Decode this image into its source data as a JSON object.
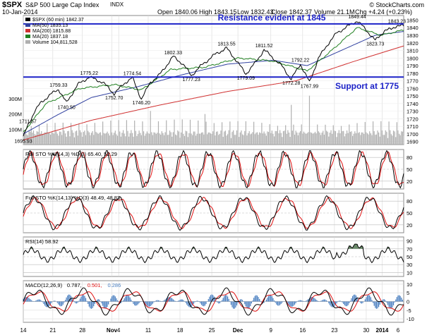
{
  "header": {
    "symbol": "$SPX",
    "name": "S&P 500 Large Cap Index",
    "exchange": "INDX",
    "date": "10-Jan-2014",
    "open": "Open 1840.06",
    "high": "High 1843.15",
    "low": "Low 1832.43",
    "close": "Close 1842.37",
    "volume": "Volume 21.1M",
    "change": "Chg +4.24 (+0.23%)",
    "copyright": "© StockCharts.com"
  },
  "colors": {
    "price": "#000000",
    "ma50": "#3040a0",
    "ma20": "#208020",
    "ma200": "#d03030",
    "volume": "#b0b0b0",
    "annotation": "#1c22c8",
    "signal": "#e01010",
    "histogram": "#4a7fc0",
    "rsi_fill": "#6a8a6a"
  },
  "chart_data": [
    {
      "type": "line",
      "panel": "price",
      "title": "$SPX (60 min) 1842.37",
      "legend": [
        "$SPX (60 min) 1842.37",
        "MA(50) 1835.13",
        "MA(200) 1815.88",
        "MA(20) 1837.18",
        "Volume 104,811,528"
      ],
      "x_labels": [
        "14",
        "21",
        "28",
        "Nov",
        "4",
        "11",
        "18",
        "25",
        "Dec",
        "9",
        "16",
        "23",
        "30",
        "2014",
        "6"
      ],
      "y_ticks": [
        1690,
        1700,
        1710,
        1720,
        1730,
        1740,
        1750,
        1760,
        1770,
        1780,
        1790,
        1800,
        1810,
        1820,
        1830,
        1840,
        1850
      ],
      "ylim": [
        1686,
        1856
      ],
      "annotations": [
        {
          "text": "Resistance evident at 1845",
          "level": 1845
        },
        {
          "text": "Support at 1775",
          "level": 1775
        }
      ],
      "swing_labels": [
        {
          "label": "1711.57",
          "i": 4
        },
        {
          "label": "1695.93",
          "i": 0
        },
        {
          "label": "1759.33",
          "i": 31
        },
        {
          "label": "1740.50",
          "i": 38
        },
        {
          "label": "1775.22",
          "i": 58
        },
        {
          "label": "1752.70",
          "i": 80
        },
        {
          "label": "1774.54",
          "i": 96
        },
        {
          "label": "1746.20",
          "i": 104
        },
        {
          "label": "1802.33",
          "i": 132
        },
        {
          "label": "1777.23",
          "i": 148
        },
        {
          "label": "1813.55",
          "i": 179
        },
        {
          "label": "1779.09",
          "i": 196
        },
        {
          "label": "1811.52",
          "i": 212
        },
        {
          "label": "1792.22",
          "i": 244
        },
        {
          "label": "1772.28",
          "i": 236
        },
        {
          "label": "1767.99",
          "i": 252
        },
        {
          "label": "1849.44",
          "i": 294
        },
        {
          "label": "1823.73",
          "i": 310
        },
        {
          "label": "1843.23",
          "i": 329
        }
      ],
      "volume_ticks": [
        "300M",
        "200M",
        "100M"
      ],
      "price_anchors": [
        [
          0,
          1696
        ],
        [
          4,
          1711
        ],
        [
          10,
          1730
        ],
        [
          16,
          1742
        ],
        [
          24,
          1752
        ],
        [
          31,
          1759
        ],
        [
          38,
          1741
        ],
        [
          48,
          1765
        ],
        [
          58,
          1775
        ],
        [
          70,
          1768
        ],
        [
          80,
          1753
        ],
        [
          90,
          1768
        ],
        [
          96,
          1774
        ],
        [
          104,
          1746
        ],
        [
          112,
          1768
        ],
        [
          120,
          1778
        ],
        [
          132,
          1802
        ],
        [
          140,
          1793
        ],
        [
          148,
          1777
        ],
        [
          158,
          1792
        ],
        [
          170,
          1806
        ],
        [
          179,
          1813
        ],
        [
          186,
          1800
        ],
        [
          196,
          1779
        ],
        [
          205,
          1795
        ],
        [
          212,
          1811
        ],
        [
          220,
          1800
        ],
        [
          228,
          1789
        ],
        [
          236,
          1772
        ],
        [
          244,
          1792
        ],
        [
          252,
          1768
        ],
        [
          260,
          1800
        ],
        [
          268,
          1818
        ],
        [
          276,
          1833
        ],
        [
          286,
          1842
        ],
        [
          294,
          1849
        ],
        [
          302,
          1837
        ],
        [
          310,
          1823
        ],
        [
          318,
          1836
        ],
        [
          324,
          1838
        ],
        [
          329,
          1843
        ],
        [
          335,
          1842
        ]
      ],
      "ma20_anchors": [
        [
          0,
          1702
        ],
        [
          20,
          1740
        ],
        [
          50,
          1760
        ],
        [
          80,
          1765
        ],
        [
          104,
          1758
        ],
        [
          130,
          1785
        ],
        [
          160,
          1788
        ],
        [
          190,
          1800
        ],
        [
          220,
          1796
        ],
        [
          250,
          1783
        ],
        [
          270,
          1808
        ],
        [
          294,
          1840
        ],
        [
          315,
          1830
        ],
        [
          335,
          1837
        ]
      ],
      "ma50_anchors": [
        [
          0,
          1700
        ],
        [
          30,
          1725
        ],
        [
          60,
          1748
        ],
        [
          100,
          1762
        ],
        [
          140,
          1778
        ],
        [
          180,
          1792
        ],
        [
          220,
          1797
        ],
        [
          250,
          1790
        ],
        [
          280,
          1810
        ],
        [
          310,
          1830
        ],
        [
          335,
          1835
        ]
      ],
      "ma200_anchors": [
        [
          0,
          1692
        ],
        [
          60,
          1718
        ],
        [
          120,
          1738
        ],
        [
          180,
          1756
        ],
        [
          240,
          1770
        ],
        [
          290,
          1795
        ],
        [
          335,
          1816
        ]
      ]
    },
    {
      "type": "line",
      "panel": "full-sto-14-3",
      "title": "Full STO %K(14,3) %D(3) 65.40, 52.29",
      "legend": [
        "Full STO %K(14,3) %D(3) 65.40, 52.29"
      ],
      "y_ticks": [
        20,
        50,
        80
      ],
      "ylim": [
        0,
        100
      ]
    },
    {
      "type": "line",
      "panel": "full-sto-14-13",
      "title": "Full STO %K(14,13) %D(3) 48.49, 48.83",
      "legend": [
        "Full STO %K(14,13) %D(3) 48.49, 48.83"
      ],
      "y_ticks": [
        20,
        50,
        80
      ],
      "ylim": [
        0,
        100
      ]
    },
    {
      "type": "line",
      "panel": "rsi",
      "title": "RSI(14) 58.92",
      "legend": [
        "RSI(14) 58.92"
      ],
      "y_ticks": [
        10,
        30,
        50,
        70,
        90
      ],
      "ylim": [
        0,
        100
      ]
    },
    {
      "type": "line",
      "panel": "macd",
      "title": "MACD(12,26,9) 0.787, 0.501, 0.286",
      "legend": [
        "MACD(12,26,9)",
        "0.787,",
        "0.501,",
        "0.286"
      ],
      "y_ticks": [
        -10,
        -5,
        0,
        5,
        10
      ],
      "ylim": [
        -12,
        12
      ]
    }
  ]
}
